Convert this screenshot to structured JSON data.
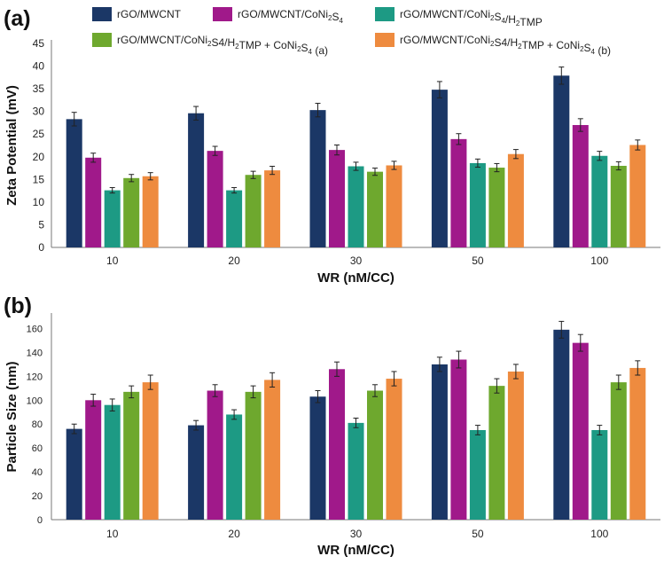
{
  "chart_data": [
    {
      "panel": "(a)",
      "type": "bar",
      "xlabel": "WR (nM/CC)",
      "ylabel": "Zeta Potential (mV)",
      "categories": [
        "10",
        "20",
        "30",
        "50",
        "100"
      ],
      "ylim": [
        0,
        45
      ],
      "yticks": [
        0,
        5,
        10,
        15,
        20,
        25,
        30,
        35,
        40,
        45
      ],
      "series": [
        {
          "name": "rGO/MWCNT",
          "color": "#1b3766",
          "values": [
            28.3,
            29.6,
            30.3,
            34.8,
            37.9
          ],
          "errors": [
            1.5,
            1.5,
            1.5,
            1.8,
            1.9
          ]
        },
        {
          "name": "rGO/MWCNT/CoNi2S4",
          "color": "#a0198a",
          "values": [
            19.8,
            21.3,
            21.5,
            23.9,
            27.0
          ],
          "errors": [
            1.0,
            1.0,
            1.1,
            1.2,
            1.4
          ]
        },
        {
          "name": "rGO/MWCNT/CoNi2S4/H2TMP",
          "color": "#1d9a84",
          "values": [
            12.6,
            12.6,
            17.9,
            18.6,
            20.2
          ],
          "errors": [
            0.6,
            0.6,
            0.9,
            0.9,
            1.0
          ]
        },
        {
          "name": "rGO/MWCNT/CoNi2S4/H2TMP + CoNi2S4 (a)",
          "color": "#6ea82e",
          "values": [
            15.3,
            16.0,
            16.7,
            17.6,
            18.0
          ],
          "errors": [
            0.8,
            0.8,
            0.8,
            0.9,
            0.9
          ]
        },
        {
          "name": "rGO/MWCNT/CoNi2S4/H2TMP + CoNi2S4 (b)",
          "color": "#ee8b3f",
          "values": [
            15.7,
            17.0,
            18.1,
            20.6,
            22.6
          ],
          "errors": [
            0.8,
            0.9,
            0.9,
            1.0,
            1.1
          ]
        }
      ]
    },
    {
      "panel": "(b)",
      "type": "bar",
      "xlabel": "WR (nM/CC)",
      "ylabel": "Particle Size (nm)",
      "categories": [
        "10",
        "20",
        "30",
        "50",
        "100"
      ],
      "ylim": [
        0,
        170
      ],
      "yticks": [
        0,
        20,
        40,
        60,
        80,
        100,
        120,
        140,
        160
      ],
      "series": [
        {
          "name": "rGO/MWCNT",
          "color": "#1b3766",
          "values": [
            76,
            79,
            103,
            130,
            159
          ],
          "errors": [
            4,
            4,
            5,
            6,
            7
          ]
        },
        {
          "name": "rGO/MWCNT/CoNi2S4",
          "color": "#a0198a",
          "values": [
            100,
            108,
            126,
            134,
            148
          ],
          "errors": [
            5,
            5,
            6,
            7,
            7
          ]
        },
        {
          "name": "rGO/MWCNT/CoNi2S4/H2TMP",
          "color": "#1d9a84",
          "values": [
            96,
            88,
            81,
            75,
            75
          ],
          "errors": [
            5,
            4,
            4,
            4,
            4
          ]
        },
        {
          "name": "rGO/MWCNT/CoNi2S4/H2TMP + CoNi2S4 (a)",
          "color": "#6ea82e",
          "values": [
            107,
            107,
            108,
            112,
            115
          ],
          "errors": [
            5,
            5,
            5,
            6,
            6
          ]
        },
        {
          "name": "rGO/MWCNT/CoNi2S4/H2TMP + CoNi2S4 (b)",
          "color": "#ee8b3f",
          "values": [
            115,
            117,
            118,
            124,
            127
          ],
          "errors": [
            6,
            6,
            6,
            6,
            6
          ]
        }
      ]
    }
  ],
  "legend": {
    "items": [
      {
        "parts": [
          [
            "rGO/MWCNT",
            false
          ]
        ],
        "color": "#1b3766"
      },
      {
        "parts": [
          [
            "rGO/MWCNT/CoNi",
            false
          ],
          [
            "2",
            true
          ],
          [
            "S",
            false
          ],
          [
            "4",
            true
          ]
        ],
        "color": "#a0198a"
      },
      {
        "parts": [
          [
            "rGO/MWCNT/CoNi",
            false
          ],
          [
            "2",
            true
          ],
          [
            "S",
            false
          ],
          [
            "4",
            true
          ],
          [
            "/H",
            false
          ],
          [
            "2",
            true
          ],
          [
            "TMP",
            false
          ]
        ],
        "color": "#1d9a84"
      },
      {
        "parts": [
          [
            "rGO/MWCNT/CoNi",
            false
          ],
          [
            "2",
            true
          ],
          [
            "S4/H",
            false
          ],
          [
            "2",
            true
          ],
          [
            "TMP + CoNi",
            false
          ],
          [
            "2",
            true
          ],
          [
            "S",
            false
          ],
          [
            "4",
            true
          ],
          [
            " (a)",
            false
          ]
        ],
        "color": "#6ea82e"
      },
      {
        "parts": [
          [
            "rGO/MWCNT/CoNi",
            false
          ],
          [
            "2",
            true
          ],
          [
            "S4/H",
            false
          ],
          [
            "2",
            true
          ],
          [
            "TMP + CoNi",
            false
          ],
          [
            "2",
            true
          ],
          [
            "S",
            false
          ],
          [
            "4",
            true
          ],
          [
            " (b)",
            false
          ]
        ],
        "color": "#ee8b3f"
      }
    ]
  }
}
